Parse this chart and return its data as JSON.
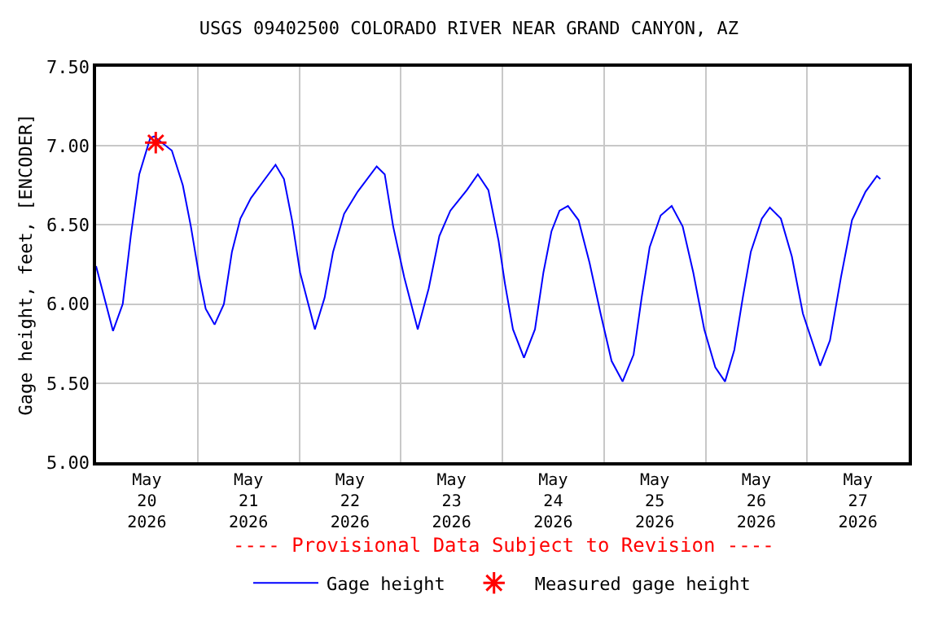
{
  "chart_data": {
    "type": "line",
    "title": "USGS 09402500 COLORADO RIVER NEAR GRAND CANYON, AZ",
    "ylabel": "Gage height, feet, [ENCODER]",
    "annotations": [
      "---- Provisional Data Subject to Revision ----"
    ],
    "xlim": [
      "2026-05-20T00:00",
      "2026-05-28T00:00"
    ],
    "xticks": [
      {
        "value": "2026-05-21T00:00",
        "label": null
      },
      {
        "value": "2026-05-22T00:00",
        "label": null
      },
      {
        "value": "2026-05-23T00:00",
        "label": null
      },
      {
        "value": "2026-05-24T00:00",
        "label": null
      },
      {
        "value": "2026-05-25T00:00",
        "label": null
      },
      {
        "value": "2026-05-26T00:00",
        "label": null
      },
      {
        "value": "2026-05-27T00:00",
        "label": null
      },
      {
        "value": "2026-05-20T12:00",
        "label": "May\n20\n2026"
      },
      {
        "value": "2026-05-21T12:00",
        "label": "May\n21\n2026"
      },
      {
        "value": "2026-05-22T12:00",
        "label": "May\n22\n2026"
      },
      {
        "value": "2026-05-23T12:00",
        "label": "May\n23\n2026"
      },
      {
        "value": "2026-05-24T12:00",
        "label": "May\n24\n2026"
      },
      {
        "value": "2026-05-25T12:00",
        "label": "May\n25\n2026"
      },
      {
        "value": "2026-05-26T12:00",
        "label": "May\n26\n2026"
      },
      {
        "value": "2026-05-27T12:00",
        "label": "May\n27\n2026"
      }
    ],
    "ylim": [
      5.0,
      7.5
    ],
    "yticks": [
      {
        "value": 5.0,
        "label": "5.00"
      },
      {
        "value": 5.5,
        "label": "5.50"
      },
      {
        "value": 6.0,
        "label": "6.00"
      },
      {
        "value": 6.5,
        "label": "6.50"
      },
      {
        "value": 7.0,
        "label": "7.00"
      },
      {
        "value": 7.5,
        "label": "7.50"
      }
    ],
    "grid": true,
    "legend": "bottom",
    "series": [
      {
        "name": "Gage height",
        "color": "#0000ff",
        "marker": "none",
        "x": [
          "2026-05-20T00:00",
          "2026-05-20T04:00",
          "2026-05-20T06:18",
          "2026-05-20T08:12",
          "2026-05-20T10:12",
          "2026-05-20T12:48",
          "2026-05-20T13:42",
          "2026-05-20T17:54",
          "2026-05-20T20:30",
          "2026-05-20T22:24",
          "2026-05-21T00:24",
          "2026-05-21T01:54",
          "2026-05-21T04:00",
          "2026-05-21T06:12",
          "2026-05-21T08:06",
          "2026-05-21T10:06",
          "2026-05-21T12:36",
          "2026-05-21T15:54",
          "2026-05-21T18:24",
          "2026-05-21T20:24",
          "2026-05-21T22:18",
          "2026-05-22T00:12",
          "2026-05-22T03:42",
          "2026-05-22T06:00",
          "2026-05-22T08:00",
          "2026-05-22T10:36",
          "2026-05-22T13:48",
          "2026-05-22T18:18",
          "2026-05-22T20:12",
          "2026-05-22T22:12",
          "2026-05-23T00:48",
          "2026-05-23T04:00",
          "2026-05-23T06:36",
          "2026-05-23T09:06",
          "2026-05-23T11:42",
          "2026-05-23T15:36",
          "2026-05-23T18:12",
          "2026-05-23T20:42",
          "2026-05-23T23:06",
          "2026-05-24T00:36",
          "2026-05-24T02:30",
          "2026-05-24T05:06",
          "2026-05-24T07:42",
          "2026-05-24T09:42",
          "2026-05-24T11:36",
          "2026-05-24T13:30",
          "2026-05-24T15:30",
          "2026-05-24T18:00",
          "2026-05-24T20:36",
          "2026-05-24T23:12",
          "2026-05-25T01:48",
          "2026-05-25T04:24",
          "2026-05-25T07:00",
          "2026-05-25T08:54",
          "2026-05-25T10:48",
          "2026-05-25T13:24",
          "2026-05-25T16:00",
          "2026-05-25T18:36",
          "2026-05-25T21:06",
          "2026-05-25T23:42",
          "2026-05-26T02:18",
          "2026-05-26T04:36",
          "2026-05-26T06:48",
          "2026-05-26T08:48",
          "2026-05-26T10:42",
          "2026-05-26T13:18",
          "2026-05-26T15:12",
          "2026-05-26T17:48",
          "2026-05-26T20:24",
          "2026-05-26T23:00",
          "2026-05-27T03:06",
          "2026-05-27T05:24",
          "2026-05-27T08:00",
          "2026-05-27T10:36",
          "2026-05-27T13:48",
          "2026-05-27T16:30",
          "2026-05-27T17:18"
        ],
        "values": [
          6.24,
          5.83,
          6.0,
          6.43,
          6.82,
          7.05,
          7.06,
          6.97,
          6.75,
          6.49,
          6.17,
          5.97,
          5.87,
          6.0,
          6.33,
          6.54,
          6.67,
          6.79,
          6.88,
          6.79,
          6.53,
          6.2,
          5.84,
          6.04,
          6.33,
          6.57,
          6.71,
          6.87,
          6.82,
          6.49,
          6.17,
          5.84,
          6.1,
          6.43,
          6.59,
          6.72,
          6.82,
          6.72,
          6.4,
          6.13,
          5.84,
          5.66,
          5.84,
          6.2,
          6.46,
          6.59,
          6.62,
          6.53,
          6.26,
          5.94,
          5.64,
          5.51,
          5.68,
          6.04,
          6.36,
          6.56,
          6.62,
          6.49,
          6.2,
          5.84,
          5.6,
          5.51,
          5.71,
          6.04,
          6.33,
          6.54,
          6.61,
          6.54,
          6.3,
          5.94,
          5.61,
          5.77,
          6.17,
          6.53,
          6.71,
          6.81,
          6.79
        ]
      },
      {
        "name": "Measured gage height",
        "color": "#ff0000",
        "type": "scatter",
        "marker": "cross",
        "x": [
          "2026-05-20T14:06"
        ],
        "values": [
          7.02
        ]
      }
    ]
  }
}
